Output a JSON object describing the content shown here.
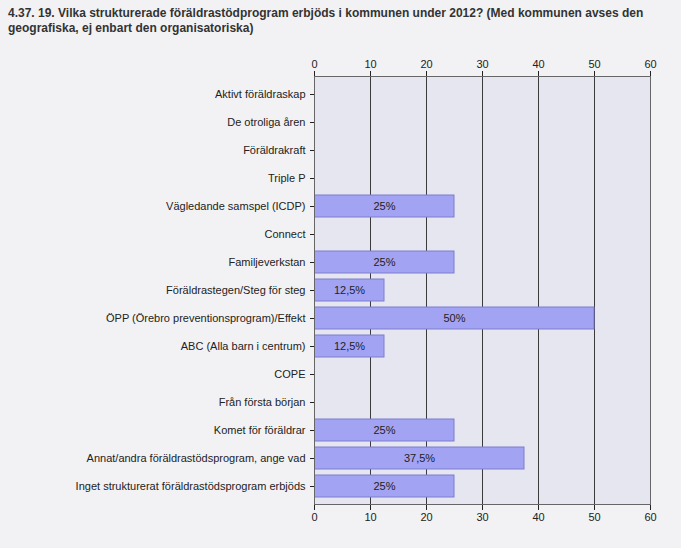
{
  "chart_data": {
    "type": "bar",
    "title": "4.37. 19. Vilka strukturerade föräldrastödprogram erbjöds i kommunen under 2012? (Med kommunen avses den geografiska, ej enbart den organisatoriska)",
    "orientation": "horizontal",
    "categories": [
      "Aktivt föräldraskap",
      "De otroliga åren",
      "Föräldrakraft",
      "Triple P",
      "Vägledande samspel (ICDP)",
      "Connect",
      "Familjeverkstan",
      "Föräldrastegen/Steg för steg",
      "ÖPP (Örebro preventionsprogram)/Effekt",
      "ABC (Alla barn i centrum)",
      "COPE",
      "Från första början",
      "Komet för föräldrar",
      "Annat/andra föräldrastödsprogram, ange vad",
      "Inget strukturerat föräldrastödsprogram erbjöds"
    ],
    "values": [
      0,
      0,
      0,
      0,
      25,
      0,
      25,
      12.5,
      50,
      12.5,
      0,
      0,
      25,
      37.5,
      25
    ],
    "value_labels": [
      null,
      null,
      null,
      null,
      "25%",
      null,
      "25%",
      "12,5%",
      "50%",
      "12,5%",
      null,
      null,
      "25%",
      "37,5%",
      "25%"
    ],
    "data_labels": true,
    "color": "#a3a3f3",
    "xlim": [
      0,
      60
    ],
    "xticks": [
      0,
      10,
      20,
      30,
      40,
      50,
      60
    ],
    "grid": true
  }
}
